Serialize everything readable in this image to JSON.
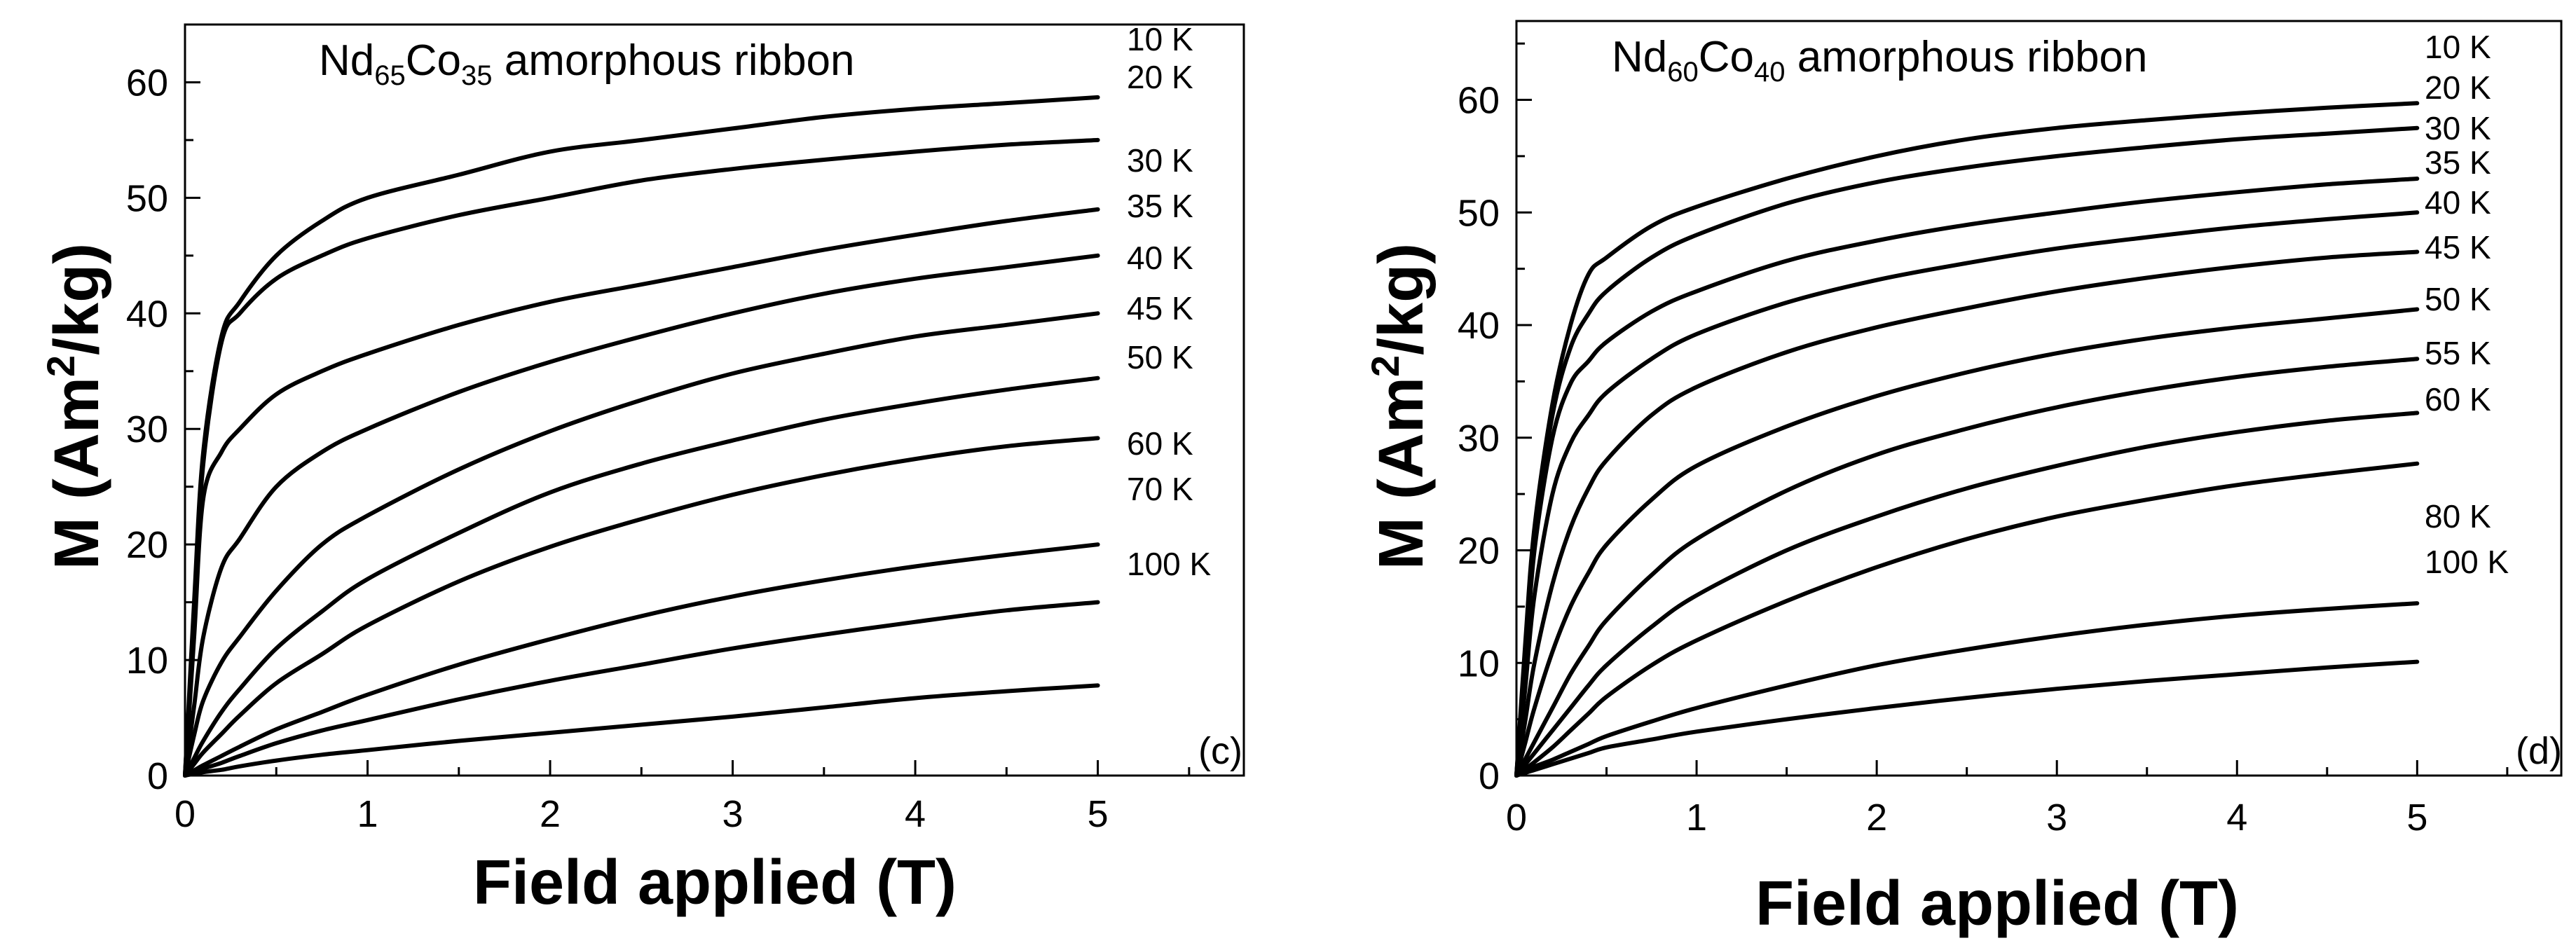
{
  "chart_data": [
    {
      "type": "line",
      "panel_tag": "(c)",
      "title": {
        "element_1": "Nd",
        "sub_1": "65",
        "element_2": "Co",
        "sub_2": "35",
        "rest": " amorphous ribbon"
      },
      "xlabel": "Field applied (T)",
      "ylabel": {
        "main": "M (Am",
        "sup": "2",
        "end": "/kg)"
      },
      "xlim": [
        0,
        5.8
      ],
      "ylim": [
        0,
        65
      ],
      "xticks": [
        "0",
        "1",
        "2",
        "3",
        "4",
        "5"
      ],
      "yticks": [
        "0",
        "10",
        "20",
        "30",
        "40",
        "50",
        "60"
      ],
      "x": [
        0,
        0.05,
        0.1,
        0.2,
        0.3,
        0.5,
        0.75,
        1,
        1.5,
        2,
        2.5,
        3,
        3.5,
        4,
        4.5,
        5
      ],
      "series": [
        {
          "name": "10 K",
          "values": [
            0,
            15,
            28,
            38,
            41,
            45,
            48,
            50,
            52,
            54,
            55,
            56,
            57,
            57.7,
            58.2,
            58.7
          ]
        },
        {
          "name": "20 K",
          "values": [
            0,
            14,
            27,
            37.5,
            40,
            43,
            45,
            46.5,
            48.5,
            50,
            51.5,
            52.5,
            53.3,
            54,
            54.6,
            55
          ]
        },
        {
          "name": "30 K",
          "values": [
            0,
            12,
            24,
            28,
            30,
            33,
            35,
            36.5,
            39,
            41,
            42.5,
            44,
            45.5,
            46.8,
            48,
            49
          ]
        },
        {
          "name": "35 K",
          "values": [
            0,
            6,
            12,
            18,
            20.5,
            25,
            28,
            30,
            33.2,
            35.8,
            38,
            40,
            41.7,
            43,
            44,
            45
          ]
        },
        {
          "name": "40 K",
          "values": [
            0,
            3.5,
            6.5,
            9.8,
            12,
            16,
            20,
            22.5,
            26.5,
            29.8,
            32.5,
            34.8,
            36.5,
            38,
            39,
            40
          ]
        },
        {
          "name": "45 K",
          "values": [
            0,
            1.5,
            3,
            5.5,
            7.5,
            11,
            14.2,
            17,
            21,
            24.5,
            27,
            29,
            30.8,
            32.2,
            33.4,
            34.4
          ]
        },
        {
          "name": "50 K",
          "values": [
            0,
            1,
            2,
            3.6,
            5.2,
            8,
            10.5,
            13,
            16.8,
            19.8,
            22.2,
            24.3,
            26,
            27.4,
            28.5,
            29.2
          ]
        },
        {
          "name": "60 K",
          "values": [
            0,
            0.45,
            0.9,
            1.7,
            2.5,
            4,
            5.5,
            7,
            9.6,
            11.8,
            13.8,
            15.5,
            16.9,
            18.1,
            19.1,
            20
          ]
        },
        {
          "name": "70 K",
          "values": [
            0,
            0.3,
            0.6,
            1.1,
            1.7,
            2.8,
            3.9,
            4.8,
            6.6,
            8.2,
            9.6,
            11,
            12.2,
            13.3,
            14.3,
            15
          ]
        },
        {
          "name": "100 K",
          "values": [
            0,
            0.15,
            0.3,
            0.5,
            0.8,
            1.3,
            1.8,
            2.2,
            3,
            3.7,
            4.4,
            5.1,
            5.9,
            6.7,
            7.3,
            7.8
          ]
        }
      ]
    },
    {
      "type": "line",
      "panel_tag": "(d)",
      "title": {
        "element_1": "Nd",
        "sub_1": "60",
        "element_2": "Co",
        "sub_2": "40",
        "rest": " amorphous ribbon"
      },
      "xlabel": "Field applied (T)",
      "ylabel": {
        "main": "M (Am",
        "sup": "2",
        "end": "/kg)"
      },
      "xlim": [
        0,
        5.8
      ],
      "ylim": [
        0,
        67
      ],
      "xticks": [
        "0",
        "1",
        "2",
        "3",
        "4",
        "5"
      ],
      "yticks": [
        "0",
        "10",
        "20",
        "30",
        "40",
        "50",
        "60"
      ],
      "x": [
        0,
        0.05,
        0.1,
        0.2,
        0.3,
        0.4,
        0.5,
        0.75,
        1,
        1.5,
        2,
        2.5,
        3,
        3.5,
        4,
        4.5,
        5
      ],
      "series": [
        {
          "name": "10 K",
          "values": [
            0,
            12,
            22,
            33,
            40,
            44.5,
            46,
            48.8,
            50.5,
            53,
            55,
            56.5,
            57.5,
            58.2,
            58.8,
            59.3,
            59.7
          ]
        },
        {
          "name": "20 K",
          "values": [
            0,
            11,
            21,
            32,
            38,
            41,
            43,
            46,
            48,
            50.8,
            52.7,
            54,
            55,
            55.8,
            56.5,
            57,
            57.5
          ]
        },
        {
          "name": "30 K",
          "values": [
            0,
            10,
            20,
            30,
            34.8,
            36.8,
            38.5,
            41.2,
            43,
            45.7,
            47.5,
            48.9,
            50,
            51,
            51.8,
            52.5,
            53
          ]
        },
        {
          "name": "35 K",
          "values": [
            0,
            8,
            16,
            25,
            29.5,
            32,
            34,
            37,
            39.2,
            42,
            44,
            45.5,
            46.8,
            47.8,
            48.7,
            49.4,
            50
          ]
        },
        {
          "name": "40 K",
          "values": [
            0,
            5,
            10,
            17,
            22,
            25.5,
            28,
            32,
            34.5,
            37.6,
            39.8,
            41.5,
            43,
            44.2,
            45.2,
            46,
            46.5
          ]
        },
        {
          "name": "45 K",
          "values": [
            0,
            3,
            6,
            11,
            15,
            18,
            20.5,
            24.5,
            27.5,
            31,
            33.7,
            35.8,
            37.5,
            38.8,
            39.8,
            40.6,
            41.4
          ]
        },
        {
          "name": "50 K",
          "values": [
            0,
            1.5,
            3,
            6,
            9,
            11.5,
            13.8,
            17.8,
            21,
            25.3,
            28.5,
            30.8,
            32.7,
            34.2,
            35.4,
            36.3,
            37
          ]
        },
        {
          "name": "55 K",
          "values": [
            0,
            1,
            2,
            4,
            6,
            8,
            9.8,
            13.2,
            16,
            20,
            23,
            25.5,
            27.5,
            29.2,
            30.5,
            31.5,
            32.2
          ]
        },
        {
          "name": "60 K",
          "values": [
            0,
            0.6,
            1.2,
            2.5,
            4,
            5.5,
            7,
            9.8,
            12,
            15.5,
            18.5,
            21,
            23,
            24.5,
            25.8,
            26.8,
            27.7
          ]
        },
        {
          "name": "80 K",
          "values": [
            0,
            0.4,
            0.8,
            1.4,
            2.1,
            2.8,
            3.5,
            4.8,
            6,
            8,
            9.8,
            11.2,
            12.4,
            13.4,
            14.2,
            14.8,
            15.3
          ]
        },
        {
          "name": "100 K",
          "values": [
            0,
            0.25,
            0.5,
            1,
            1.5,
            2,
            2.5,
            3.2,
            3.9,
            5,
            6,
            6.9,
            7.7,
            8.4,
            9,
            9.6,
            10.1
          ]
        }
      ]
    }
  ]
}
